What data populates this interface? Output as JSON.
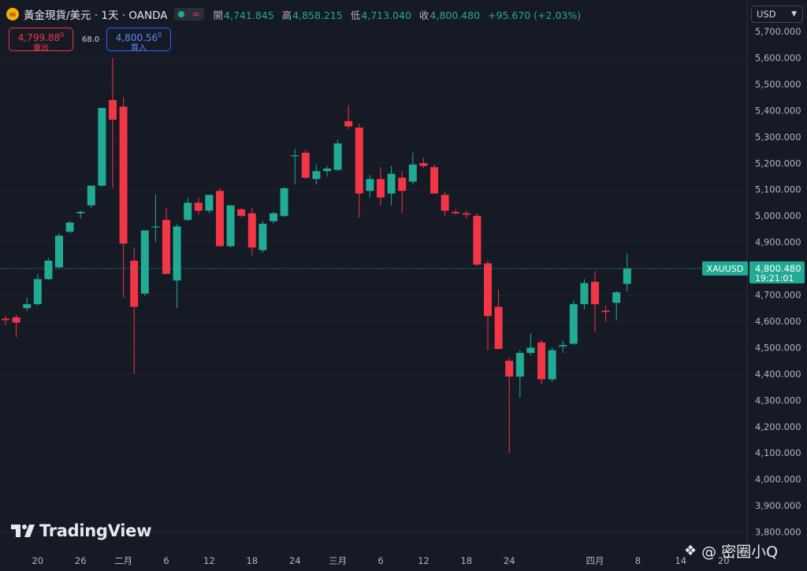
{
  "header": {
    "symbol_title": "黃金現貨/美元 · 1天 · OANDA",
    "symbol_icon": "gold-bars-icon",
    "ohlc": [
      {
        "label": "開",
        "value": "4,741.845"
      },
      {
        "label": "高",
        "value": "4,858.215"
      },
      {
        "label": "低",
        "value": "4,713.040"
      },
      {
        "label": "收",
        "value": "4,800.480"
      },
      {
        "label": "",
        "value": "+95.670 (+2.03%)"
      }
    ],
    "currency": "USD"
  },
  "trade": {
    "sell_price": "4,799.88",
    "sell_price_sup": "0",
    "sell_label": "賣出",
    "spread": "68.0",
    "buy_price": "4,800.56",
    "buy_price_sup": "0",
    "buy_label": "買入"
  },
  "branding": {
    "logo_text": "TradingView",
    "watermark": "@ 密圈小Q"
  },
  "colors": {
    "background": "#161a25",
    "up": "#22ab94",
    "down": "#f23645",
    "grid": "#1f2330",
    "axis_text": "#b2b5be"
  },
  "chart_data": {
    "type": "candlestick",
    "symbol": "XAUUSD",
    "last_price": "4,800.480",
    "countdown": "19:21:01",
    "ylim": [
      3750,
      5750
    ],
    "y_ticks": [
      "5,700.000",
      "5,600.000",
      "5,500.000",
      "5,400.000",
      "5,300.000",
      "5,200.000",
      "5,100.000",
      "5,000.000",
      "4,900.000",
      "4,800.000",
      "4,700.000",
      "4,600.000",
      "4,500.000",
      "4,400.000",
      "4,300.000",
      "4,200.000",
      "4,100.000",
      "4,000.000",
      "3,900.000",
      "3,800.000"
    ],
    "x_ticks": [
      "20",
      "26",
      "二月",
      "6",
      "12",
      "18",
      "24",
      "三月",
      "6",
      "12",
      "18",
      "24",
      "四月",
      "8",
      "14",
      "20"
    ],
    "candles": [
      {
        "o": 4610,
        "h": 4620,
        "l": 4585,
        "c": 4605
      },
      {
        "o": 4615,
        "h": 4625,
        "l": 4540,
        "c": 4595
      },
      {
        "o": 4650,
        "h": 4690,
        "l": 4640,
        "c": 4665
      },
      {
        "o": 4665,
        "h": 4780,
        "l": 4660,
        "c": 4760
      },
      {
        "o": 4760,
        "h": 4840,
        "l": 4755,
        "c": 4830
      },
      {
        "o": 4805,
        "h": 4935,
        "l": 4800,
        "c": 4925
      },
      {
        "o": 4940,
        "h": 4980,
        "l": 4935,
        "c": 4975
      },
      {
        "o": 5010,
        "h": 5020,
        "l": 4990,
        "c": 5015
      },
      {
        "o": 5040,
        "h": 5100,
        "l": 5030,
        "c": 5115
      },
      {
        "o": 5115,
        "h": 5410,
        "l": 5110,
        "c": 5410
      },
      {
        "o": 5440,
        "h": 5600,
        "l": 5105,
        "c": 5365
      },
      {
        "o": 5415,
        "h": 5450,
        "l": 4690,
        "c": 4895
      },
      {
        "o": 4830,
        "h": 4880,
        "l": 4400,
        "c": 4655
      },
      {
        "o": 4705,
        "h": 4945,
        "l": 4695,
        "c": 4945
      },
      {
        "o": 4960,
        "h": 5080,
        "l": 4900,
        "c": 4960
      },
      {
        "o": 4985,
        "h": 5030,
        "l": 4780,
        "c": 4780
      },
      {
        "o": 4755,
        "h": 4970,
        "l": 4650,
        "c": 4960
      },
      {
        "o": 4985,
        "h": 5070,
        "l": 4980,
        "c": 5050
      },
      {
        "o": 5050,
        "h": 5070,
        "l": 5005,
        "c": 5020
      },
      {
        "o": 5020,
        "h": 5080,
        "l": 5010,
        "c": 5080
      },
      {
        "o": 5095,
        "h": 5105,
        "l": 4885,
        "c": 4885
      },
      {
        "o": 4885,
        "h": 5040,
        "l": 4880,
        "c": 5040
      },
      {
        "o": 5025,
        "h": 5030,
        "l": 4995,
        "c": 5000
      },
      {
        "o": 5010,
        "h": 5030,
        "l": 4850,
        "c": 4880
      },
      {
        "o": 4870,
        "h": 4980,
        "l": 4860,
        "c": 4970
      },
      {
        "o": 4980,
        "h": 5015,
        "l": 4970,
        "c": 5010
      },
      {
        "o": 5000,
        "h": 5110,
        "l": 4995,
        "c": 5105
      },
      {
        "o": 5230,
        "h": 5255,
        "l": 5120,
        "c": 5230
      },
      {
        "o": 5240,
        "h": 5250,
        "l": 5140,
        "c": 5145
      },
      {
        "o": 5140,
        "h": 5195,
        "l": 5120,
        "c": 5170
      },
      {
        "o": 5170,
        "h": 5190,
        "l": 5150,
        "c": 5180
      },
      {
        "o": 5175,
        "h": 5290,
        "l": 5170,
        "c": 5275
      },
      {
        "o": 5360,
        "h": 5420,
        "l": 5330,
        "c": 5340
      },
      {
        "o": 5335,
        "h": 5350,
        "l": 4995,
        "c": 5085
      },
      {
        "o": 5095,
        "h": 5155,
        "l": 5070,
        "c": 5140
      },
      {
        "o": 5140,
        "h": 5185,
        "l": 5040,
        "c": 5070
      },
      {
        "o": 5085,
        "h": 5190,
        "l": 5040,
        "c": 5160
      },
      {
        "o": 5145,
        "h": 5170,
        "l": 5010,
        "c": 5095
      },
      {
        "o": 5130,
        "h": 5240,
        "l": 5120,
        "c": 5195
      },
      {
        "o": 5200,
        "h": 5220,
        "l": 5180,
        "c": 5190
      },
      {
        "o": 5185,
        "h": 5195,
        "l": 5085,
        "c": 5085
      },
      {
        "o": 5080,
        "h": 5090,
        "l": 5000,
        "c": 5020
      },
      {
        "o": 5015,
        "h": 5025,
        "l": 5005,
        "c": 5010
      },
      {
        "o": 5010,
        "h": 5020,
        "l": 4990,
        "c": 5005
      },
      {
        "o": 5000,
        "h": 5010,
        "l": 4810,
        "c": 4815
      },
      {
        "o": 4820,
        "h": 4830,
        "l": 4490,
        "c": 4620
      },
      {
        "o": 4655,
        "h": 4720,
        "l": 4500,
        "c": 4495
      },
      {
        "o": 4450,
        "h": 4460,
        "l": 4100,
        "c": 4390
      },
      {
        "o": 4390,
        "h": 4490,
        "l": 4310,
        "c": 4480
      },
      {
        "o": 4480,
        "h": 4555,
        "l": 4470,
        "c": 4500
      },
      {
        "o": 4520,
        "h": 4530,
        "l": 4360,
        "c": 4380
      },
      {
        "o": 4380,
        "h": 4500,
        "l": 4370,
        "c": 4490
      },
      {
        "o": 4505,
        "h": 4525,
        "l": 4480,
        "c": 4510
      },
      {
        "o": 4515,
        "h": 4680,
        "l": 4510,
        "c": 4665
      },
      {
        "o": 4665,
        "h": 4760,
        "l": 4645,
        "c": 4745
      },
      {
        "o": 4750,
        "h": 4790,
        "l": 4560,
        "c": 4665
      },
      {
        "o": 4640,
        "h": 4660,
        "l": 4600,
        "c": 4635
      },
      {
        "o": 4670,
        "h": 4715,
        "l": 4605,
        "c": 4710
      },
      {
        "o": 4742,
        "h": 4858,
        "l": 4713,
        "c": 4800
      }
    ]
  }
}
